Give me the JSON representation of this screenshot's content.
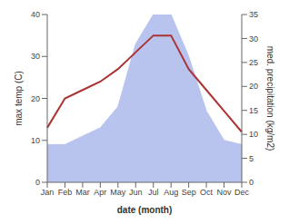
{
  "chart_data": {
    "type": "area",
    "xlabel": "date (month)",
    "ylabel": "max temp (C)",
    "y2label": "med. precipitation (kg/m2)",
    "categories": [
      "Jan",
      "Feb",
      "Mar",
      "Apr",
      "May",
      "Jun",
      "Jul",
      "Aug",
      "Sep",
      "Oct",
      "Nov",
      "Dec"
    ],
    "series": [
      {
        "type": "area",
        "color": "#b8c4ee",
        "values": [
          9,
          9,
          11,
          13,
          18,
          33,
          40,
          40,
          30,
          17,
          10,
          9
        ]
      },
      {
        "type": "line",
        "color": "#aa3333",
        "values": [
          13,
          20,
          22,
          24,
          27,
          31,
          35,
          35,
          27,
          22,
          17,
          12
        ]
      }
    ],
    "ylim": [
      0,
      40
    ],
    "yticks": [
      0,
      10,
      20,
      30,
      40
    ],
    "y2lim": [
      0,
      35
    ],
    "y2ticks": [
      0,
      5,
      10,
      15,
      20,
      25,
      30,
      35
    ],
    "grid": false
  }
}
